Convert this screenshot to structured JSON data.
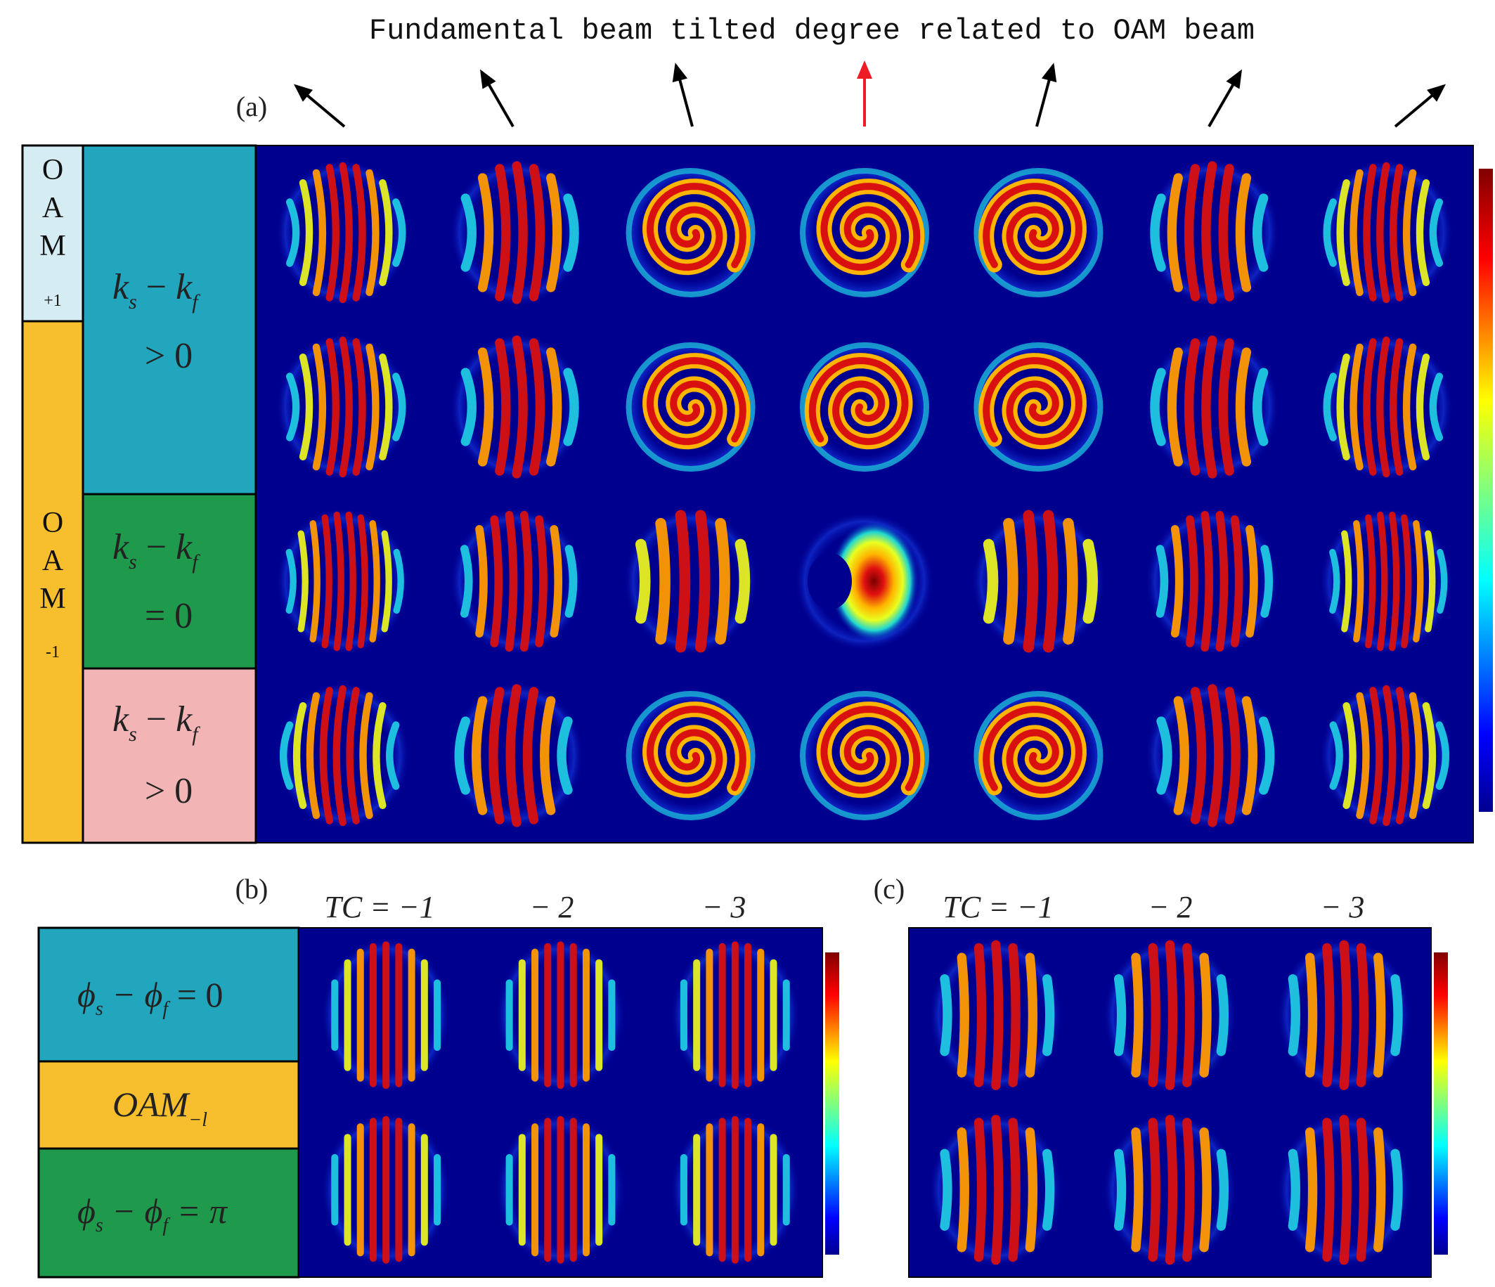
{
  "header": {
    "title": "Fundamental beam tilted degree related to OAM beam",
    "arrow_count": 7,
    "highlighted_arrow_index": 3
  },
  "panel_a": {
    "label": "(a)",
    "oam_labels": [
      {
        "letters": [
          "O",
          "A",
          "M"
        ],
        "subscript": "+1"
      },
      {
        "letters": [
          "O",
          "A",
          "M"
        ],
        "subscript": "-1"
      }
    ],
    "rows": [
      {
        "line1_a": "k",
        "line1_sub_a": "s",
        "line1_mid": " − ",
        "line1_b": "k",
        "line1_sub_b": "f",
        "line2": "> 0"
      },
      {
        "line1_a": "k",
        "line1_sub_a": "s",
        "line1_mid": " − ",
        "line1_b": "k",
        "line1_sub_b": "f",
        "line2": "= 0"
      },
      {
        "line1_a": "k",
        "line1_sub_a": "s",
        "line1_mid": " − ",
        "line1_b": "k",
        "line1_sub_b": "f",
        "line2": "> 0"
      }
    ],
    "grid_columns": 7,
    "grid_rows": 4
  },
  "panel_b": {
    "label": "(b)",
    "column_headers": [
      "TC = −1",
      "− 2",
      "− 3"
    ],
    "row_labels": [
      {
        "sym": "ϕ",
        "sub_a": "s",
        "mid": " − ϕ",
        "sub_b": "f",
        "rest": " = 0"
      },
      {
        "main": "OAM",
        "sub": "−l"
      },
      {
        "sym": "ϕ",
        "sub_a": "s",
        "mid": " − ϕ",
        "sub_b": "f",
        "rest": " = π"
      }
    ]
  },
  "panel_c": {
    "label": "(c)",
    "column_headers": [
      "TC = −1",
      "− 2",
      "− 3"
    ]
  },
  "colors": {
    "background_field": "#00008f",
    "oam_plus_bg": "#d4ecf2",
    "oam_minus_bg": "#f7be2e",
    "teal_bg": "#21a6bd",
    "green_bg": "#1f9a4c",
    "pink_bg": "#f3b4b6",
    "red_arrow": "#ee1c24",
    "black": "#000000"
  }
}
